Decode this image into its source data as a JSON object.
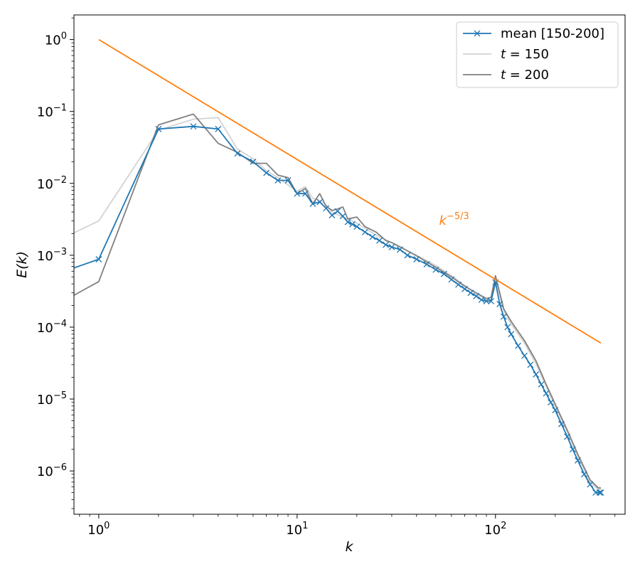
{
  "chart_data": {
    "type": "line",
    "xscale": "log",
    "yscale": "log",
    "xlim": [
      0.75,
      450
    ],
    "ylim": [
      2.5e-07,
      2.2
    ],
    "xlabel": "k",
    "ylabel": "E(k)",
    "grid": false,
    "legend_position": "top-right",
    "x_ticks": [
      {
        "value": 1,
        "base": "10",
        "exp": "0"
      },
      {
        "value": 10,
        "base": "10",
        "exp": "1"
      },
      {
        "value": 100,
        "base": "10",
        "exp": "2"
      }
    ],
    "y_ticks": [
      {
        "value": 1,
        "base": "10",
        "exp": "0"
      },
      {
        "value": 0.1,
        "base": "10",
        "exp": "−1"
      },
      {
        "value": 0.01,
        "base": "10",
        "exp": "−2"
      },
      {
        "value": 0.001,
        "base": "10",
        "exp": "−3"
      },
      {
        "value": 0.0001,
        "base": "10",
        "exp": "−4"
      },
      {
        "value": 1e-05,
        "base": "10",
        "exp": "−5"
      },
      {
        "value": 1e-06,
        "base": "10",
        "exp": "−6"
      }
    ],
    "series": [
      {
        "name": "t = 150",
        "legend_var": "t",
        "legend_rest": " = 150",
        "color": "#d3d3d3",
        "marker": "none",
        "x": [
          0.5,
          1,
          2,
          3,
          4,
          5,
          6,
          7,
          8,
          9,
          10,
          11,
          12,
          13,
          14,
          15,
          17,
          20,
          25,
          30,
          40,
          50,
          60,
          70,
          80,
          90,
          95,
          100,
          110,
          120,
          140,
          160,
          180,
          200,
          230,
          260,
          300,
          330,
          340
        ],
        "y": [
          0.0012,
          0.003,
          0.055,
          0.078,
          0.082,
          0.03,
          0.022,
          0.015,
          0.012,
          0.0095,
          0.0078,
          0.009,
          0.0062,
          0.0058,
          0.005,
          0.004,
          0.0034,
          0.0028,
          0.0019,
          0.0015,
          0.001,
          0.00072,
          0.00052,
          0.00038,
          0.00029,
          0.00024,
          0.00024,
          0.00046,
          0.00017,
          0.00011,
          6e-05,
          3.1e-05,
          1.5e-05,
          8e-06,
          3.5e-06,
          1.6e-06,
          7e-07,
          5.5e-07,
          5.5e-07
        ]
      },
      {
        "name": "t = 200",
        "legend_var": "t",
        "legend_rest": " = 200",
        "color": "#808080",
        "marker": "none",
        "x": [
          0.5,
          1,
          2,
          3,
          4,
          5,
          6,
          7,
          8,
          9,
          10,
          11,
          12,
          13,
          14,
          15,
          16,
          17,
          18,
          20,
          22,
          25,
          28,
          30,
          35,
          40,
          50,
          60,
          70,
          80,
          90,
          95,
          100,
          110,
          120,
          140,
          160,
          180,
          200,
          230,
          260,
          300,
          330,
          340
        ],
        "y": [
          0.00015,
          0.00043,
          0.065,
          0.092,
          0.036,
          0.027,
          0.019,
          0.019,
          0.013,
          0.012,
          0.0072,
          0.0085,
          0.0052,
          0.0072,
          0.0048,
          0.0042,
          0.0044,
          0.0047,
          0.0032,
          0.0034,
          0.0025,
          0.0021,
          0.0016,
          0.0015,
          0.0012,
          0.00098,
          0.00068,
          0.0005,
          0.00037,
          0.0003,
          0.00025,
          0.00026,
          0.00052,
          0.00018,
          0.00012,
          6.5e-05,
          3.4e-05,
          1.6e-05,
          8.5e-06,
          3.7e-06,
          1.7e-06,
          7.5e-07,
          5.8e-07,
          5.8e-07
        ]
      },
      {
        "name": "mean [150-200]",
        "color": "#1f77b4",
        "marker": "x",
        "x": [
          0.5,
          1,
          2,
          3,
          4,
          5,
          6,
          7,
          8,
          9,
          10,
          11,
          12,
          13,
          14,
          15,
          16,
          17,
          18,
          19,
          20,
          22,
          24,
          26,
          28,
          30,
          33,
          36,
          40,
          45,
          50,
          55,
          60,
          65,
          70,
          75,
          80,
          85,
          90,
          95,
          100,
          105,
          110,
          115,
          120,
          130,
          140,
          150,
          160,
          170,
          180,
          190,
          200,
          215,
          230,
          245,
          260,
          280,
          300,
          320,
          335,
          340
        ],
        "y": [
          0.00045,
          0.00088,
          0.057,
          0.062,
          0.057,
          0.026,
          0.02,
          0.014,
          0.011,
          0.011,
          0.0072,
          0.0072,
          0.0052,
          0.0055,
          0.0045,
          0.0036,
          0.0041,
          0.0035,
          0.0029,
          0.0027,
          0.0025,
          0.0021,
          0.0018,
          0.0016,
          0.0014,
          0.0013,
          0.0012,
          0.001,
          0.00088,
          0.00075,
          0.00063,
          0.00055,
          0.00046,
          0.00039,
          0.00034,
          0.0003,
          0.00027,
          0.00024,
          0.00023,
          0.00023,
          0.00042,
          0.00021,
          0.00014,
          0.0001,
          8e-05,
          5.5e-05,
          4e-05,
          3e-05,
          2.2e-05,
          1.6e-05,
          1.2e-05,
          9e-06,
          7e-06,
          4.5e-06,
          3e-06,
          2e-06,
          1.4e-06,
          9e-07,
          6.5e-07,
          5e-07,
          5e-07,
          5e-07
        ]
      },
      {
        "name": "k^-5/3",
        "color": "#ff7f0e",
        "marker": "none",
        "x": [
          1,
          340
        ],
        "y": [
          1,
          6e-05
        ]
      }
    ],
    "annotation": {
      "base": "k",
      "exp": "−5/3",
      "x": 52,
      "y": 0.0031,
      "color": "#ff7f0e"
    },
    "legend": [
      "mean [150-200]",
      "t = 150",
      "t = 200"
    ]
  }
}
